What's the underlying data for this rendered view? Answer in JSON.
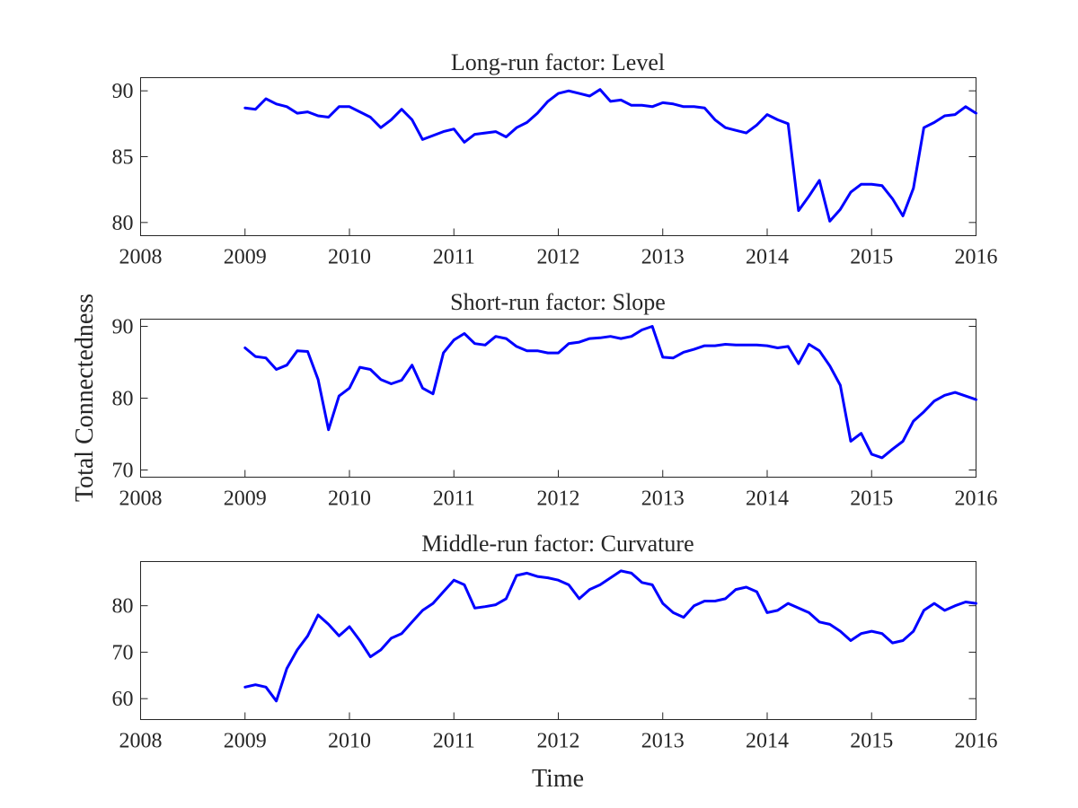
{
  "figure": {
    "ylabel": "Total Connectedness",
    "xlabel": "Time"
  },
  "chart_data": [
    {
      "type": "line",
      "title": "Long-run factor: Level",
      "xlim": [
        2008,
        2016
      ],
      "ylim": [
        79,
        91
      ],
      "xticks": [
        "2008",
        "2009",
        "2010",
        "2011",
        "2012",
        "2013",
        "2014",
        "2015",
        "2016"
      ],
      "yticks": [
        "80",
        "85",
        "90"
      ],
      "color": "#0000ff",
      "x": [
        2009.0,
        2009.1,
        2009.2,
        2009.3,
        2009.4,
        2009.5,
        2009.6,
        2009.7,
        2009.8,
        2009.9,
        2010.0,
        2010.1,
        2010.2,
        2010.3,
        2010.4,
        2010.5,
        2010.6,
        2010.7,
        2010.8,
        2010.9,
        2011.0,
        2011.1,
        2011.2,
        2011.3,
        2011.4,
        2011.5,
        2011.6,
        2011.7,
        2011.8,
        2011.9,
        2012.0,
        2012.1,
        2012.2,
        2012.3,
        2012.4,
        2012.5,
        2012.6,
        2012.7,
        2012.8,
        2012.9,
        2013.0,
        2013.1,
        2013.2,
        2013.3,
        2013.4,
        2013.5,
        2013.6,
        2013.7,
        2013.8,
        2013.9,
        2014.0,
        2014.1,
        2014.2,
        2014.3,
        2014.4,
        2014.5,
        2014.6,
        2014.7,
        2014.8,
        2014.9,
        2015.0,
        2015.1,
        2015.2,
        2015.3,
        2015.4,
        2015.5,
        2015.6,
        2015.7,
        2015.8,
        2015.9,
        2016.0
      ],
      "y": [
        88.7,
        88.6,
        89.4,
        89.0,
        88.8,
        88.3,
        88.4,
        88.1,
        88.0,
        88.8,
        88.8,
        88.4,
        88.0,
        87.2,
        87.8,
        88.6,
        87.8,
        86.3,
        86.6,
        86.9,
        87.1,
        86.1,
        86.7,
        86.8,
        86.9,
        86.5,
        87.2,
        87.6,
        88.3,
        89.2,
        89.8,
        90.0,
        89.8,
        89.6,
        90.1,
        89.2,
        89.3,
        88.9,
        88.9,
        88.8,
        89.1,
        89.0,
        88.8,
        88.8,
        88.7,
        87.8,
        87.2,
        87.0,
        86.8,
        87.4,
        88.2,
        87.8,
        87.5,
        80.9,
        82.0,
        83.2,
        80.1,
        81.0,
        82.3,
        82.9,
        82.9,
        82.8,
        81.8,
        80.5,
        82.6,
        87.2,
        87.6,
        88.1,
        88.2,
        88.8,
        88.3
      ]
    },
    {
      "type": "line",
      "title": "Short-run factor: Slope",
      "xlim": [
        2008,
        2016
      ],
      "ylim": [
        69,
        91
      ],
      "xticks": [
        "2008",
        "2009",
        "2010",
        "2011",
        "2012",
        "2013",
        "2014",
        "2015",
        "2016"
      ],
      "yticks": [
        "70",
        "80",
        "90"
      ],
      "color": "#0000ff",
      "x": [
        2009.0,
        2009.1,
        2009.2,
        2009.3,
        2009.4,
        2009.5,
        2009.6,
        2009.7,
        2009.8,
        2009.9,
        2010.0,
        2010.1,
        2010.2,
        2010.3,
        2010.4,
        2010.5,
        2010.6,
        2010.7,
        2010.8,
        2010.9,
        2011.0,
        2011.1,
        2011.2,
        2011.3,
        2011.4,
        2011.5,
        2011.6,
        2011.7,
        2011.8,
        2011.9,
        2012.0,
        2012.1,
        2012.2,
        2012.3,
        2012.4,
        2012.5,
        2012.6,
        2012.7,
        2012.8,
        2012.9,
        2013.0,
        2013.1,
        2013.2,
        2013.3,
        2013.4,
        2013.5,
        2013.6,
        2013.7,
        2013.8,
        2013.9,
        2014.0,
        2014.1,
        2014.2,
        2014.3,
        2014.4,
        2014.5,
        2014.6,
        2014.7,
        2014.8,
        2014.9,
        2015.0,
        2015.1,
        2015.2,
        2015.3,
        2015.4,
        2015.5,
        2015.6,
        2015.7,
        2015.8,
        2015.9,
        2016.0
      ],
      "y": [
        87.0,
        85.8,
        85.6,
        84.0,
        84.6,
        86.6,
        86.5,
        82.6,
        75.6,
        80.3,
        81.4,
        84.3,
        84.0,
        82.6,
        82.0,
        82.5,
        84.6,
        81.4,
        80.6,
        86.3,
        88.1,
        89.0,
        87.6,
        87.4,
        88.6,
        88.3,
        87.2,
        86.6,
        86.6,
        86.3,
        86.3,
        87.6,
        87.8,
        88.3,
        88.4,
        88.6,
        88.3,
        88.6,
        89.5,
        90.0,
        85.7,
        85.6,
        86.4,
        86.8,
        87.3,
        87.3,
        87.5,
        87.4,
        87.4,
        87.4,
        87.3,
        87.0,
        87.2,
        84.8,
        87.5,
        86.6,
        84.5,
        81.8,
        74.0,
        75.1,
        72.2,
        71.7,
        72.9,
        74.0,
        76.8,
        78.1,
        79.6,
        80.4,
        80.8,
        80.3,
        79.8
      ]
    },
    {
      "type": "line",
      "title": "Middle-run factor: Curvature",
      "xlim": [
        2008,
        2016
      ],
      "ylim": [
        55.5,
        89.5
      ],
      "xticks": [
        "2008",
        "2009",
        "2010",
        "2011",
        "2012",
        "2013",
        "2014",
        "2015",
        "2016"
      ],
      "yticks": [
        "60",
        "70",
        "80"
      ],
      "color": "#0000ff",
      "x": [
        2009.0,
        2009.1,
        2009.2,
        2009.3,
        2009.4,
        2009.5,
        2009.6,
        2009.7,
        2009.8,
        2009.9,
        2010.0,
        2010.1,
        2010.2,
        2010.3,
        2010.4,
        2010.5,
        2010.6,
        2010.7,
        2010.8,
        2010.9,
        2011.0,
        2011.1,
        2011.2,
        2011.3,
        2011.4,
        2011.5,
        2011.6,
        2011.7,
        2011.8,
        2011.9,
        2012.0,
        2012.1,
        2012.2,
        2012.3,
        2012.4,
        2012.5,
        2012.6,
        2012.7,
        2012.8,
        2012.9,
        2013.0,
        2013.1,
        2013.2,
        2013.3,
        2013.4,
        2013.5,
        2013.6,
        2013.7,
        2013.8,
        2013.9,
        2014.0,
        2014.1,
        2014.2,
        2014.3,
        2014.4,
        2014.5,
        2014.6,
        2014.7,
        2014.8,
        2014.9,
        2015.0,
        2015.1,
        2015.2,
        2015.3,
        2015.4,
        2015.5,
        2015.6,
        2015.7,
        2015.8,
        2015.9,
        2016.0
      ],
      "y": [
        62.5,
        63.0,
        62.5,
        59.5,
        66.5,
        70.5,
        73.5,
        78.0,
        76.0,
        73.5,
        75.5,
        72.5,
        69.0,
        70.5,
        73.0,
        74.0,
        76.5,
        79.0,
        80.5,
        83.0,
        85.5,
        84.5,
        79.5,
        79.8,
        80.2,
        81.5,
        86.5,
        87.0,
        86.3,
        86.0,
        85.5,
        84.5,
        81.5,
        83.5,
        84.5,
        86.0,
        87.5,
        87.0,
        85.0,
        84.5,
        80.5,
        78.5,
        77.5,
        80.0,
        81.0,
        81.0,
        81.5,
        83.5,
        84.0,
        83.0,
        78.5,
        79.0,
        80.5,
        79.5,
        78.5,
        76.5,
        76.0,
        74.5,
        72.5,
        74.0,
        74.5,
        74.0,
        72.0,
        72.5,
        74.5,
        79.0,
        80.5,
        79.0,
        80.0,
        80.8,
        80.5
      ]
    }
  ]
}
